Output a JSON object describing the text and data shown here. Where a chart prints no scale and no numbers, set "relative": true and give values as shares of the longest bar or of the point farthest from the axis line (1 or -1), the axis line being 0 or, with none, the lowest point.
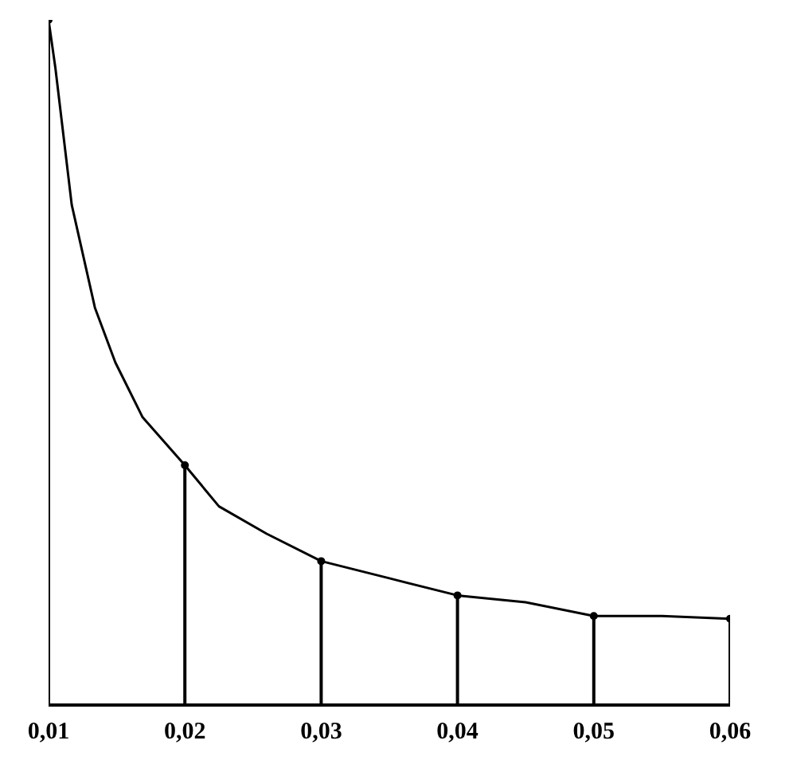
{
  "chart_data": {
    "type": "line",
    "relative": true,
    "xlim": [
      0.01,
      0.06
    ],
    "xticks": [
      {
        "value": 0.01,
        "label": "0,01"
      },
      {
        "value": 0.02,
        "label": "0,02"
      },
      {
        "value": 0.03,
        "label": "0,03"
      },
      {
        "value": 0.04,
        "label": "0,04"
      },
      {
        "value": 0.05,
        "label": "0,05"
      },
      {
        "value": 0.06,
        "label": "0,06"
      }
    ],
    "grid": false,
    "marker": "none",
    "line_style": "solid",
    "series": [
      {
        "color": "#000000",
        "x": [
          0.01,
          0.0105,
          0.0117,
          0.0134,
          0.0149,
          0.0169,
          0.02,
          0.0225,
          0.026,
          0.03,
          0.035,
          0.04,
          0.045,
          0.05,
          0.055,
          0.06
        ],
        "values": [
          1.0,
          0.93,
          0.73,
          0.58,
          0.5,
          0.42,
          0.35,
          0.29,
          0.25,
          0.21,
          0.185,
          0.16,
          0.15,
          0.13,
          0.13,
          0.126
        ]
      },
      {
        "type": "lollipop",
        "marker": "circle",
        "color": "#000000",
        "x": [
          0.01,
          0.02,
          0.03,
          0.04,
          0.05,
          0.06
        ],
        "values": [
          1.0,
          0.35,
          0.21,
          0.16,
          0.13,
          0.126
        ]
      }
    ]
  }
}
